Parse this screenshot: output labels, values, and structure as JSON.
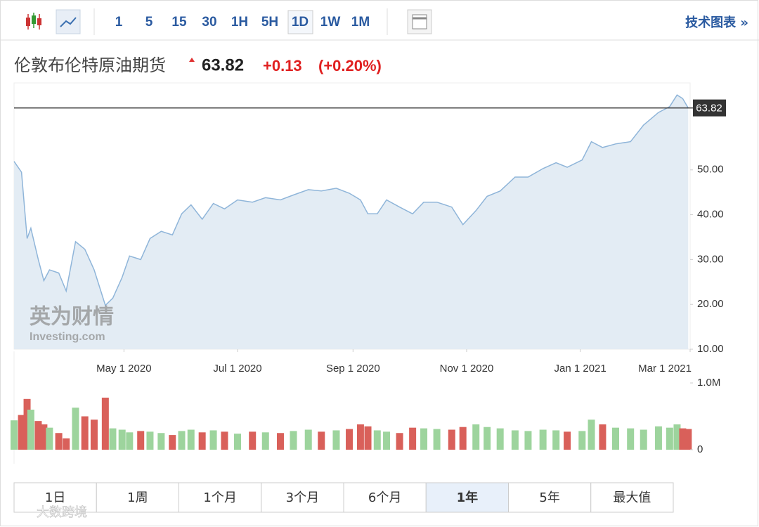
{
  "toolbar": {
    "intervals": [
      "1",
      "5",
      "15",
      "30",
      "1H",
      "5H",
      "1D",
      "1W",
      "1M"
    ],
    "active_interval": 6,
    "technical_link": "技术图表 »"
  },
  "header": {
    "title": "伦敦布伦特原油期货",
    "price": "63.82",
    "change": "+0.13",
    "change_pct": "(+0.20%)"
  },
  "chart_data": {
    "type": "line",
    "x": [
      "2020-03-03",
      "2020-03-07",
      "2020-03-10",
      "2020-03-12",
      "2020-03-16",
      "2020-03-19",
      "2020-03-22",
      "2020-03-27",
      "2020-03-31",
      "2020-04-05",
      "2020-04-10",
      "2020-04-15",
      "2020-04-21",
      "2020-04-25",
      "2020-04-30",
      "2020-05-04",
      "2020-05-10",
      "2020-05-15",
      "2020-05-21",
      "2020-05-27",
      "2020-06-01",
      "2020-06-06",
      "2020-06-12",
      "2020-06-18",
      "2020-06-24",
      "2020-07-01",
      "2020-07-09",
      "2020-07-16",
      "2020-07-24",
      "2020-07-31",
      "2020-08-08",
      "2020-08-15",
      "2020-08-23",
      "2020-08-30",
      "2020-09-05",
      "2020-09-09",
      "2020-09-14",
      "2020-09-19",
      "2020-09-26",
      "2020-10-03",
      "2020-10-09",
      "2020-10-16",
      "2020-10-24",
      "2020-10-30",
      "2020-11-06",
      "2020-11-12",
      "2020-11-19",
      "2020-11-27",
      "2020-12-04",
      "2020-12-12",
      "2020-12-19",
      "2020-12-25",
      "2021-01-02",
      "2021-01-07",
      "2021-01-13",
      "2021-01-20",
      "2021-01-28",
      "2021-02-04",
      "2021-02-12",
      "2021-02-18",
      "2021-02-22",
      "2021-02-25",
      "2021-02-28"
    ],
    "values": [
      51.9,
      49.5,
      34.7,
      37,
      30,
      25.3,
      27.7,
      27,
      23,
      34,
      32.3,
      27.7,
      19.8,
      21.4,
      26,
      30.8,
      30,
      34.7,
      36.3,
      35.5,
      40.2,
      42.2,
      39,
      42.5,
      41.3,
      43.3,
      42.8,
      43.8,
      43.3,
      44.4,
      45.6,
      45.3,
      45.9,
      44.8,
      43.3,
      40.2,
      40.2,
      43.3,
      41.7,
      40.2,
      42.8,
      42.8,
      41.7,
      37.8,
      40.9,
      44.1,
      45.3,
      48.4,
      48.4,
      50.3,
      51.6,
      50.6,
      52.2,
      56.3,
      55,
      55.8,
      56.3,
      60,
      62.8,
      64.1,
      66.7,
      65.9,
      63.8
    ],
    "color": "#8fb5d9",
    "fill": "#e3ecf4",
    "xlim": [
      "2020-03-03",
      "2021-03-01"
    ],
    "xticks": [
      {
        "value": "2020-05-01",
        "label": "May 1 2020"
      },
      {
        "value": "2020-07-01",
        "label": "Jul 1 2020"
      },
      {
        "value": "2020-09-01",
        "label": "Sep 1 2020"
      },
      {
        "value": "2020-11-01",
        "label": "Nov 1 2020"
      },
      {
        "value": "2021-01-01",
        "label": "Jan 1 2021"
      },
      {
        "value": "2021-03-01",
        "label": "Mar 1 2021"
      }
    ],
    "ylim": [
      10,
      69.4
    ],
    "yticks": [
      {
        "value": 10,
        "label": "10.00"
      },
      {
        "value": 20,
        "label": "20.00"
      },
      {
        "value": 30,
        "label": "30.00"
      },
      {
        "value": 40,
        "label": "40.00"
      },
      {
        "value": 50,
        "label": "50.00"
      }
    ],
    "last_price": 63.82,
    "volume": {
      "values": [
        440000,
        520000,
        760000,
        600000,
        430000,
        380000,
        330000,
        250000,
        170000,
        630000,
        500000,
        450000,
        780000,
        320000,
        300000,
        260000,
        280000,
        270000,
        250000,
        220000,
        280000,
        300000,
        260000,
        290000,
        270000,
        240000,
        270000,
        260000,
        250000,
        280000,
        300000,
        270000,
        290000,
        310000,
        380000,
        350000,
        290000,
        270000,
        250000,
        330000,
        320000,
        310000,
        300000,
        340000,
        380000,
        340000,
        320000,
        290000,
        280000,
        300000,
        290000,
        270000,
        280000,
        450000,
        380000,
        330000,
        320000,
        300000,
        350000,
        330000,
        380000,
        320000,
        310000
      ],
      "ylim": [
        0,
        1000000
      ],
      "yticks": [
        {
          "value": 0,
          "label": "0"
        },
        {
          "value": 1000000,
          "label": "1.0M"
        }
      ],
      "up_color": "#9dd49d",
      "down_color": "#d9605a"
    },
    "watermark": [
      "英为财情",
      "Investing.com"
    ]
  },
  "ranges": {
    "buttons": [
      "1日",
      "1周",
      "1个月",
      "3个月",
      "6个月",
      "1年",
      "5年",
      "最大值"
    ],
    "active": 5
  },
  "watermark": "大数跨境"
}
